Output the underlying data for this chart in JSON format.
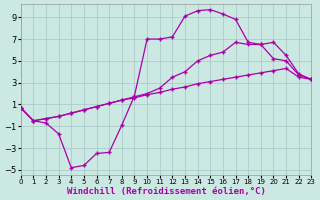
{
  "bg_color": "#cce8e2",
  "grid_color": "#aacccc",
  "line_color": "#aa00aa",
  "xlabel": "Windchill (Refroidissement éolien,°C)",
  "xlabel_fontsize": 6.5,
  "xlim": [
    0,
    23
  ],
  "ylim": [
    -5.5,
    10.2
  ],
  "yticks": [
    -5,
    -3,
    -1,
    1,
    3,
    5,
    7,
    9
  ],
  "xticks": [
    0,
    1,
    2,
    3,
    4,
    5,
    6,
    7,
    8,
    9,
    10,
    11,
    12,
    13,
    14,
    15,
    16,
    17,
    18,
    19,
    20,
    21,
    22,
    23
  ],
  "line1_x": [
    0,
    1,
    2,
    3,
    4,
    5,
    6,
    7,
    8,
    9,
    10,
    11,
    12,
    13,
    14,
    15,
    16,
    17,
    18,
    19,
    20,
    21,
    22,
    23
  ],
  "line1_y": [
    0.7,
    -0.5,
    -0.7,
    -1.7,
    -4.8,
    -4.6,
    -3.5,
    -3.4,
    -0.9,
    1.8,
    7.0,
    7.0,
    7.2,
    9.1,
    9.6,
    9.7,
    9.3,
    8.8,
    6.7,
    6.5,
    5.2,
    5.0,
    3.7,
    3.3
  ],
  "line2_x": [
    0,
    1,
    2,
    3,
    4,
    5,
    6,
    7,
    8,
    9,
    10,
    11,
    12,
    13,
    14,
    15,
    16,
    17,
    18,
    19,
    20,
    21,
    22,
    23
  ],
  "line2_y": [
    0.7,
    -0.5,
    -0.3,
    -0.1,
    0.2,
    0.5,
    0.8,
    1.1,
    1.4,
    1.6,
    1.9,
    2.1,
    2.4,
    2.6,
    2.9,
    3.1,
    3.3,
    3.5,
    3.7,
    3.9,
    4.1,
    4.3,
    3.5,
    3.3
  ],
  "line3_x": [
    0,
    1,
    2,
    3,
    4,
    5,
    6,
    7,
    8,
    9,
    10,
    11,
    12,
    13,
    14,
    15,
    16,
    17,
    18,
    19,
    20,
    21,
    22,
    23
  ],
  "line3_y": [
    0.7,
    -0.5,
    -0.3,
    -0.1,
    0.2,
    0.5,
    0.8,
    1.1,
    1.4,
    1.7,
    2.0,
    2.5,
    3.5,
    4.0,
    5.0,
    5.5,
    5.8,
    6.7,
    6.5,
    6.5,
    6.7,
    5.5,
    3.8,
    3.3
  ]
}
